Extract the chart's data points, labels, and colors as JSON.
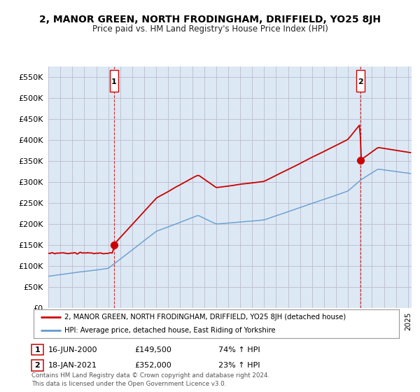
{
  "title": "2, MANOR GREEN, NORTH FRODINGHAM, DRIFFIELD, YO25 8JH",
  "subtitle": "Price paid vs. HM Land Registry's House Price Index (HPI)",
  "legend_line1": "2, MANOR GREEN, NORTH FRODINGHAM, DRIFFIELD, YO25 8JH (detached house)",
  "legend_line2": "HPI: Average price, detached house, East Riding of Yorkshire",
  "footer": "Contains HM Land Registry data © Crown copyright and database right 2024.\nThis data is licensed under the Open Government Licence v3.0.",
  "ylim": [
    0,
    575000
  ],
  "xlim_start": 1995.0,
  "xlim_end": 2025.3,
  "red_color": "#cc0000",
  "blue_color": "#6699cc",
  "plot_bg_color": "#dce9f5",
  "background_color": "#ffffff",
  "grid_color": "#bbbbcc",
  "marker1_x": 2000.46,
  "marker1_y": 149500,
  "marker2_x": 2021.05,
  "marker2_y": 352000,
  "transactions": [
    {
      "label": "1",
      "date": "16-JUN-2000",
      "price": "£149,500",
      "hpi": "74% ↑ HPI"
    },
    {
      "label": "2",
      "date": "18-JAN-2021",
      "price": "£352,000",
      "hpi": "23% ↑ HPI"
    }
  ]
}
